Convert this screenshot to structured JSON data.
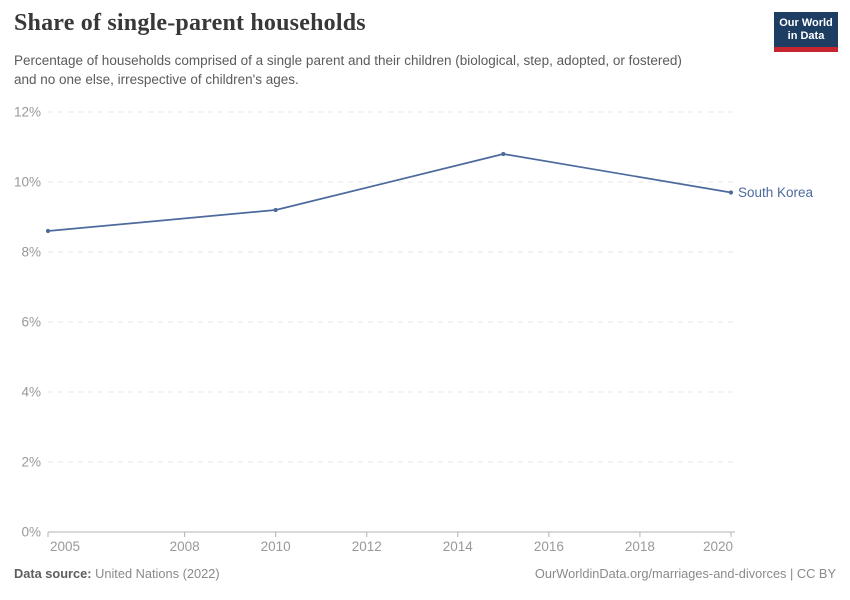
{
  "header": {
    "title": "Share of single-parent households",
    "subtitle": "Percentage of households comprised of a single parent and their children (biological, step, adopted, or fostered) and no one else, irrespective of children's ages.",
    "logo": {
      "line1": "Our World",
      "line2": "in Data",
      "bg_color": "#1d3d63",
      "bar_color": "#c7252d"
    }
  },
  "chart_data": {
    "type": "line",
    "title": "Share of single-parent households",
    "xlabel": "",
    "ylabel": "",
    "xlim": [
      2005,
      2020
    ],
    "ylim": [
      0,
      12
    ],
    "xticks": [
      2005,
      2008,
      2010,
      2012,
      2014,
      2016,
      2018,
      2020
    ],
    "yticks": [
      0,
      2,
      4,
      6,
      8,
      10,
      12
    ],
    "ytick_labels": [
      "0%",
      "2%",
      "4%",
      "6%",
      "8%",
      "10%",
      "12%"
    ],
    "grid": "horizontal-dashed",
    "legend_position": "end-of-line-label",
    "series": [
      {
        "name": "South Korea",
        "color": "#4C6A9C",
        "x": [
          2005,
          2010,
          2015,
          2020
        ],
        "values": [
          8.6,
          9.2,
          10.8,
          9.7
        ]
      }
    ]
  },
  "styles": {
    "gridline_color": "#e7e7e7",
    "axis_color": "#b3b3b3",
    "tick_label_color": "#999999"
  },
  "footer": {
    "source_label": "Data source:",
    "source_value": "United Nations (2022)",
    "link_text": "OurWorldinData.org/marriages-and-divorces | CC BY"
  }
}
